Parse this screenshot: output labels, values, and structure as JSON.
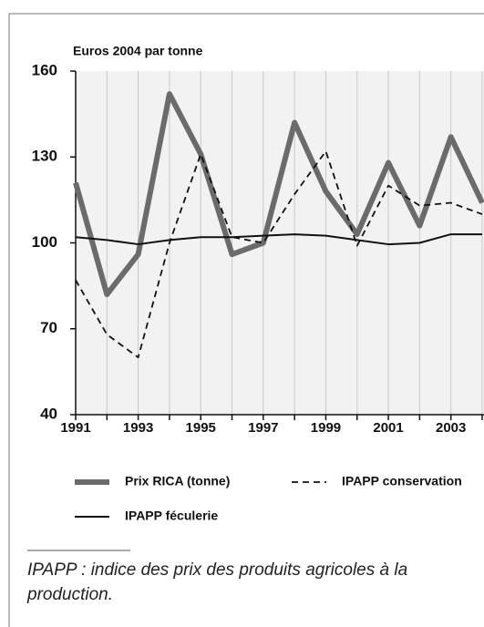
{
  "chart_data": {
    "type": "line",
    "ylabel": "Euros 2004 par tonne",
    "x": [
      1991,
      1992,
      1993,
      1994,
      1995,
      1996,
      1997,
      1998,
      1999,
      2000,
      2001,
      2002,
      2003,
      2004
    ],
    "xlim": [
      1991,
      2004
    ],
    "xticks": [
      1991,
      1993,
      1995,
      1997,
      1999,
      2001,
      2003
    ],
    "ylim": [
      40,
      160
    ],
    "yticks": [
      40,
      70,
      100,
      130,
      160
    ],
    "grid": true,
    "series": [
      {
        "name": "Prix RICA (tonne)",
        "color": "#6b6b6b",
        "style": "thick",
        "values": [
          121,
          82,
          96,
          152,
          131,
          96,
          100,
          142,
          118,
          103,
          128,
          106,
          137,
          114
        ]
      },
      {
        "name": "IPAPP conservation",
        "color": "#111111",
        "style": "dashed",
        "values": [
          87,
          68,
          60,
          100,
          131,
          102,
          100,
          117,
          132,
          99,
          120,
          113,
          114,
          110
        ]
      },
      {
        "name": "IPAPP féculerie",
        "color": "#111111",
        "style": "solid",
        "values": [
          102,
          101,
          99.5,
          101,
          102,
          102,
          102.5,
          103,
          102.5,
          101,
          99.5,
          100,
          103,
          103
        ]
      }
    ]
  },
  "note": "IPAPP : indice des prix des produits agricoles à la production."
}
